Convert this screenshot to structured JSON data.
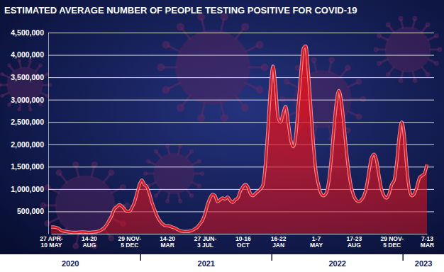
{
  "chart_data": {
    "type": "area",
    "title": "ESTIMATED AVERAGE NUMBER OF PEOPLE TESTING POSITIVE FOR COVID-19",
    "color": "#e3121c",
    "grid": true,
    "ylim": [
      0,
      4500000
    ],
    "yticks": [
      {
        "value": 500000,
        "label": "500,000"
      },
      {
        "value": 1000000,
        "label": "1,000,000"
      },
      {
        "value": 1500000,
        "label": "1,500,000"
      },
      {
        "value": 2000000,
        "label": "2,000,000"
      },
      {
        "value": 2500000,
        "label": "2,500,000"
      },
      {
        "value": 3000000,
        "label": "3,000,000"
      },
      {
        "value": 3500000,
        "label": "3,500,000"
      },
      {
        "value": 4000000,
        "label": "4,000,000"
      },
      {
        "value": 4500000,
        "label": "4,500,000"
      }
    ],
    "annotations": [
      "2020",
      "2021",
      "2022",
      "2023"
    ],
    "categories": [
      "27 APR-10 MAY",
      null,
      null,
      null,
      null,
      null,
      null,
      null,
      null,
      null,
      null,
      null,
      null,
      null,
      null,
      "14-20 AUG",
      null,
      null,
      null,
      null,
      null,
      null,
      null,
      null,
      null,
      null,
      null,
      null,
      null,
      null,
      null,
      "29 NOV-5 DEC",
      null,
      null,
      null,
      null,
      null,
      null,
      null,
      null,
      null,
      null,
      null,
      null,
      null,
      null,
      "14-20 MAR",
      null,
      null,
      null,
      null,
      null,
      null,
      null,
      null,
      null,
      null,
      null,
      null,
      null,
      null,
      "27 JUN-3 JUL",
      null,
      null,
      null,
      null,
      null,
      null,
      null,
      null,
      null,
      null,
      null,
      null,
      null,
      null,
      "10-16 OCT",
      null,
      null,
      null,
      null,
      null,
      null,
      null,
      null,
      null,
      null,
      null,
      null,
      null,
      "16-22 JAN",
      null,
      null,
      null,
      null,
      null,
      null,
      null,
      null,
      null,
      null,
      null,
      null,
      null,
      null,
      "1-7 MAY",
      null,
      null,
      null,
      null,
      null,
      null,
      null,
      null,
      null,
      null,
      null,
      null,
      null,
      null,
      "17-23 AUG",
      null,
      null,
      null,
      null,
      null,
      null,
      null,
      null,
      null,
      null,
      null,
      null,
      null,
      null,
      "29 NOV-5 DEC",
      null,
      null,
      null,
      null,
      null,
      null,
      null,
      null,
      null,
      null,
      null,
      null,
      null,
      "7-13 MAR"
    ],
    "values": [
      150000,
      150000,
      140000,
      120000,
      80000,
      60000,
      50000,
      40000,
      35000,
      30000,
      30000,
      35000,
      40000,
      40000,
      35000,
      30000,
      35000,
      40000,
      45000,
      60000,
      90000,
      130000,
      200000,
      300000,
      400000,
      550000,
      600000,
      650000,
      620000,
      560000,
      500000,
      500000,
      580000,
      700000,
      900000,
      1100000,
      1200000,
      1100000,
      1050000,
      900000,
      700000,
      550000,
      400000,
      300000,
      230000,
      190000,
      180000,
      170000,
      150000,
      130000,
      100000,
      70000,
      55000,
      50000,
      50000,
      60000,
      80000,
      110000,
      150000,
      220000,
      300000,
      450000,
      650000,
      800000,
      880000,
      850000,
      720000,
      760000,
      800000,
      780000,
      820000,
      750000,
      700000,
      760000,
      800000,
      950000,
      1050000,
      1100000,
      1050000,
      900000,
      850000,
      900000,
      950000,
      1000000,
      1100000,
      1600000,
      2400000,
      3300000,
      3750000,
      3300000,
      2600000,
      2500000,
      2700000,
      2850000,
      2500000,
      2100000,
      1950000,
      2200000,
      2900000,
      3600000,
      4150000,
      4200000,
      3600000,
      2800000,
      2000000,
      1400000,
      1100000,
      900000,
      850000,
      900000,
      1150000,
      1650000,
      2300000,
      2900000,
      3200000,
      3000000,
      2500000,
      1900000,
      1400000,
      1050000,
      850000,
      750000,
      720000,
      760000,
      850000,
      1050000,
      1400000,
      1700000,
      1780000,
      1650000,
      1300000,
      1000000,
      850000,
      800000,
      900000,
      1100000,
      1200000,
      1600000,
      2200000,
      2500000,
      2200000,
      1500000,
      1000000,
      850000,
      900000,
      1050000,
      1250000,
      1300000,
      1350000,
      1550000
    ]
  }
}
